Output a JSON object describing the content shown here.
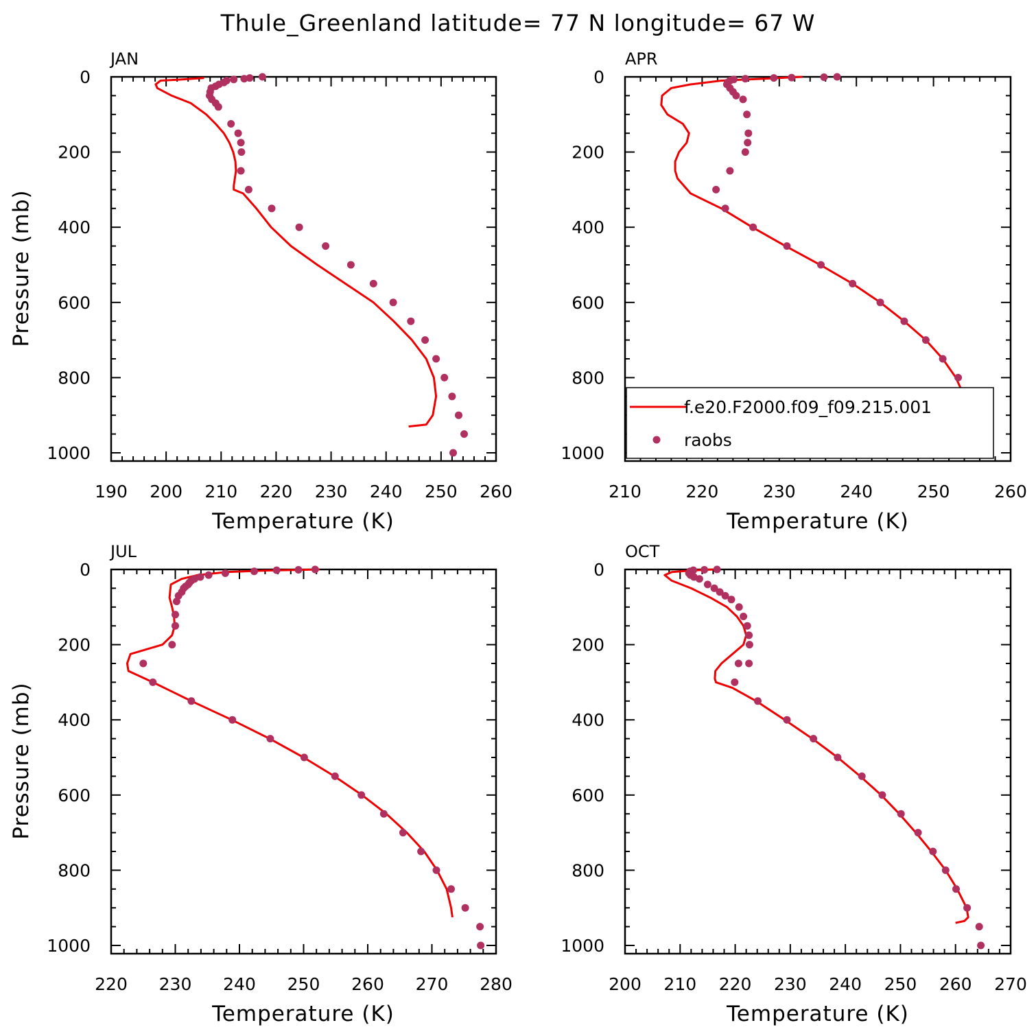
{
  "title": "Thule_Greenland  latitude= 77 N longitude= 67 W",
  "legend": {
    "model_label": "f.e20.F2000.f09_f09.215.001",
    "obs_label": "raobs",
    "line_color": "#ee0000",
    "marker_color": "#b03060"
  },
  "chart_data": [
    {
      "type": "line+scatter",
      "panel": "JAN",
      "xlabel": "Temperature (K)",
      "ylabel": "Pressure (mb)",
      "xlim": [
        190,
        260
      ],
      "xticks": [
        190,
        200,
        210,
        220,
        230,
        240,
        250,
        260
      ],
      "ylim": [
        1000,
        0
      ],
      "yticks": [
        0,
        200,
        400,
        600,
        800,
        1000
      ],
      "model": {
        "x": [
          206.9,
          203.0,
          199.0,
          198.1,
          198.4,
          201.0,
          204.5,
          207.3,
          209.0,
          210.5,
          211.5,
          212.2,
          212.6,
          212.7,
          212.5,
          212.3,
          212.3,
          214.0,
          216.4,
          219.1,
          222.7,
          227.5,
          232.6,
          237.7,
          241.4,
          244.7,
          247.3,
          248.7,
          249.1,
          248.5,
          247.3,
          244.1
        ],
        "y": [
          3,
          7,
          10,
          20,
          30,
          50,
          70,
          100,
          125,
          150,
          175,
          200,
          225,
          250,
          270,
          290,
          300,
          310,
          350,
          400,
          450,
          500,
          550,
          600,
          650,
          700,
          750,
          800,
          850,
          900,
          925,
          930
        ]
      },
      "obs": {
        "x": [
          217.5,
          215.2,
          214.2,
          212.3,
          211.0,
          210.5,
          209.6,
          209.0,
          208.2,
          208.0,
          207.9,
          208.3,
          209.0,
          209.5,
          211.8,
          213.1,
          213.6,
          213.7,
          213.6,
          215.0,
          219.2,
          224.2,
          229.0,
          233.6,
          237.7,
          241.3,
          244.5,
          247.1,
          249.1,
          250.6,
          252.0,
          253.2,
          254.2,
          252.2
        ],
        "y": [
          0,
          3,
          5,
          7,
          10,
          15,
          20,
          25,
          30,
          40,
          50,
          60,
          70,
          80,
          125,
          150,
          175,
          200,
          250,
          300,
          350,
          400,
          450,
          500,
          550,
          600,
          650,
          700,
          750,
          800,
          850,
          900,
          950,
          1000
        ]
      }
    },
    {
      "type": "line+scatter",
      "panel": "APR",
      "xlabel": "Temperature (K)",
      "ylabel": "",
      "xlim": [
        210,
        260
      ],
      "xticks": [
        210,
        220,
        230,
        240,
        250,
        260
      ],
      "ylim": [
        1000,
        0
      ],
      "yticks": [
        0,
        200,
        400,
        600,
        800,
        1000
      ],
      "model": {
        "x": [
          233.0,
          228.0,
          222.5,
          218.5,
          216.0,
          214.8,
          214.7,
          215.5,
          217.5,
          218.3,
          218.0,
          217.0,
          216.5,
          216.5,
          216.8,
          218.5,
          222.5,
          226.5,
          230.8,
          235.3,
          239.5,
          243.1,
          246.2,
          249.0,
          251.2,
          252.9,
          254.0,
          254.9,
          255.3,
          255.6,
          254.5,
          253.6
        ],
        "y": [
          0,
          5,
          10,
          20,
          30,
          50,
          75,
          100,
          125,
          150,
          175,
          200,
          225,
          250,
          270,
          310,
          350,
          400,
          450,
          500,
          550,
          600,
          650,
          700,
          750,
          800,
          850,
          900,
          920,
          925,
          930,
          935
        ]
      },
      "obs": {
        "x": [
          237.5,
          235.8,
          231.6,
          229.3,
          225.6,
          224.1,
          223.6,
          223.3,
          223.2,
          223.6,
          224.0,
          224.4,
          225.3,
          225.8,
          226.0,
          225.9,
          225.6,
          223.6,
          221.8,
          223.0,
          226.6,
          231.0,
          235.4,
          239.5,
          243.1,
          246.2,
          249.0,
          251.2,
          253.2,
          254.3,
          255.7,
          257.1,
          257.1
        ],
        "y": [
          0,
          1,
          2,
          3,
          5,
          7,
          10,
          15,
          20,
          30,
          40,
          50,
          60,
          100,
          150,
          175,
          200,
          250,
          300,
          350,
          400,
          450,
          500,
          550,
          600,
          650,
          700,
          750,
          800,
          850,
          900,
          950,
          1000
        ]
      }
    },
    {
      "type": "line+scatter",
      "panel": "JUL",
      "xlabel": "Temperature (K)",
      "ylabel": "Pressure (mb)",
      "xlim": [
        220,
        280
      ],
      "xticks": [
        220,
        230,
        240,
        250,
        260,
        270,
        280
      ],
      "ylim": [
        1000,
        0
      ],
      "yticks": [
        0,
        200,
        400,
        600,
        800,
        1000
      ],
      "model": {
        "x": [
          252.5,
          244.0,
          238.0,
          233.5,
          231.0,
          229.3,
          229.1,
          229.5,
          229.8,
          229.9,
          229.5,
          228.0,
          223.0,
          222.5,
          222.7,
          226.5,
          232.5,
          238.8,
          244.7,
          250.0,
          254.8,
          259.1,
          262.9,
          266.1,
          268.8,
          270.8,
          272.3,
          273.0,
          273.2
        ],
        "y": [
          0,
          3,
          7,
          15,
          25,
          40,
          75,
          100,
          125,
          150,
          175,
          200,
          225,
          250,
          270,
          300,
          350,
          400,
          450,
          500,
          550,
          600,
          650,
          700,
          750,
          800,
          850,
          900,
          925
        ]
      },
      "obs": {
        "x": [
          251.8,
          249.2,
          245.8,
          242.3,
          237.8,
          235.2,
          233.9,
          233.0,
          232.5,
          232.2,
          232.0,
          231.6,
          231.3,
          231.0,
          230.5,
          230.2,
          230.0,
          230.0,
          229.5,
          225.0,
          226.5,
          232.5,
          238.9,
          244.8,
          250.1,
          254.9,
          259.0,
          262.5,
          265.5,
          268.3,
          270.7,
          273.0,
          275.2,
          277.5,
          277.6
        ],
        "y": [
          0,
          1,
          2,
          5,
          10,
          15,
          20,
          25,
          30,
          35,
          40,
          45,
          50,
          60,
          70,
          85,
          120,
          150,
          200,
          250,
          300,
          350,
          400,
          450,
          500,
          550,
          600,
          650,
          700,
          750,
          800,
          850,
          900,
          950,
          1000
        ]
      }
    },
    {
      "type": "line+scatter",
      "panel": "OCT",
      "xlabel": "Temperature (K)",
      "ylabel": "",
      "xlim": [
        200,
        270
      ],
      "xticks": [
        200,
        210,
        220,
        230,
        240,
        250,
        260,
        270
      ],
      "ylim": [
        1000,
        0
      ],
      "yticks": [
        0,
        200,
        400,
        600,
        800,
        1000
      ],
      "model": {
        "x": [
          216.0,
          212.0,
          208.5,
          207.2,
          208.5,
          212.0,
          215.5,
          218.5,
          220.3,
          221.5,
          222.0,
          221.5,
          219.5,
          217.5,
          216.4,
          216.3,
          216.5,
          219.5,
          223.8,
          229.0,
          234.0,
          238.6,
          242.7,
          246.5,
          249.8,
          252.8,
          255.6,
          258.2,
          260.3,
          262.0,
          262.3,
          261.6,
          260.0
        ],
        "y": [
          0,
          3,
          7,
          15,
          30,
          50,
          75,
          100,
          125,
          150,
          175,
          200,
          225,
          250,
          270,
          290,
          300,
          315,
          350,
          400,
          450,
          500,
          550,
          600,
          650,
          700,
          750,
          800,
          850,
          900,
          925,
          935,
          940
        ]
      },
      "obs": {
        "x": [
          216.7,
          214.4,
          212.4,
          211.8,
          211.6,
          211.9,
          212.5,
          213.5,
          215.0,
          216.2,
          217.2,
          218.2,
          219.3,
          220.7,
          221.5,
          222.2,
          222.5,
          222.6,
          222.5,
          220.6,
          219.9,
          224.1,
          229.4,
          234.2,
          238.6,
          243.0,
          246.7,
          250.1,
          253.2,
          255.9,
          258.2,
          260.1,
          262.1,
          264.3,
          264.6
        ],
        "y": [
          0,
          1,
          2,
          5,
          10,
          15,
          20,
          25,
          40,
          50,
          60,
          70,
          80,
          100,
          125,
          150,
          175,
          200,
          250,
          250,
          300,
          350,
          400,
          450,
          500,
          550,
          600,
          650,
          700,
          750,
          800,
          850,
          900,
          950,
          1000
        ]
      }
    }
  ]
}
